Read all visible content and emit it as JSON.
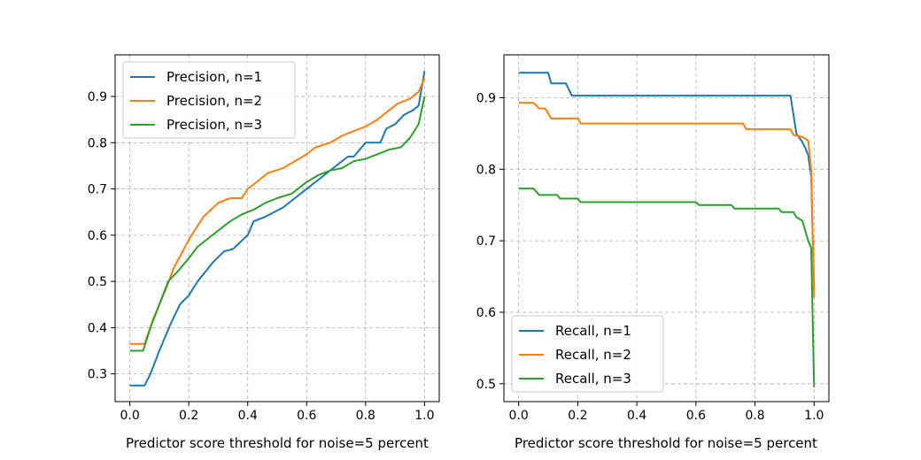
{
  "chart_data": [
    {
      "type": "line",
      "title": "",
      "xlabel": "Predictor score threshold for noise=5 percent",
      "ylabel": "",
      "xlim": [
        -0.05,
        1.05
      ],
      "ylim": [
        0.24,
        0.99
      ],
      "xticks": [
        0.0,
        0.2,
        0.4,
        0.6,
        0.8,
        1.0
      ],
      "yticks": [
        0.3,
        0.4,
        0.5,
        0.6,
        0.7,
        0.8,
        0.9
      ],
      "xtick_labels": [
        "0.0",
        "0.2",
        "0.4",
        "0.6",
        "0.8",
        "1.0"
      ],
      "ytick_labels": [
        "0.3",
        "0.4",
        "0.5",
        "0.6",
        "0.7",
        "0.8",
        "0.9"
      ],
      "grid": true,
      "legend_position": "top-left",
      "series": [
        {
          "name": "Precision, n=1",
          "color": "#1f77b4",
          "x": [
            0.0,
            0.05,
            0.07,
            0.1,
            0.14,
            0.17,
            0.2,
            0.23,
            0.28,
            0.32,
            0.35,
            0.4,
            0.42,
            0.46,
            0.52,
            0.56,
            0.6,
            0.64,
            0.68,
            0.7,
            0.72,
            0.74,
            0.76,
            0.8,
            0.85,
            0.87,
            0.9,
            0.93,
            0.96,
            0.98,
            1.0
          ],
          "y": [
            0.275,
            0.275,
            0.3,
            0.35,
            0.41,
            0.45,
            0.47,
            0.5,
            0.54,
            0.565,
            0.57,
            0.6,
            0.63,
            0.64,
            0.66,
            0.68,
            0.7,
            0.72,
            0.74,
            0.75,
            0.76,
            0.77,
            0.77,
            0.8,
            0.8,
            0.83,
            0.84,
            0.86,
            0.87,
            0.88,
            0.955
          ]
        },
        {
          "name": "Precision, n=2",
          "color": "#ff7f0e",
          "x": [
            0.0,
            0.05,
            0.08,
            0.12,
            0.15,
            0.2,
            0.22,
            0.25,
            0.3,
            0.34,
            0.38,
            0.4,
            0.44,
            0.47,
            0.52,
            0.56,
            0.6,
            0.63,
            0.68,
            0.72,
            0.76,
            0.8,
            0.84,
            0.88,
            0.91,
            0.95,
            0.98,
            1.0
          ],
          "y": [
            0.365,
            0.365,
            0.42,
            0.48,
            0.53,
            0.59,
            0.61,
            0.64,
            0.67,
            0.68,
            0.68,
            0.7,
            0.72,
            0.735,
            0.745,
            0.76,
            0.775,
            0.79,
            0.8,
            0.815,
            0.825,
            0.835,
            0.85,
            0.87,
            0.885,
            0.895,
            0.91,
            0.94
          ]
        },
        {
          "name": "Precision, n=3",
          "color": "#2ca02c",
          "x": [
            0.0,
            0.045,
            0.07,
            0.1,
            0.13,
            0.16,
            0.2,
            0.23,
            0.26,
            0.3,
            0.34,
            0.38,
            0.42,
            0.46,
            0.5,
            0.55,
            0.6,
            0.64,
            0.68,
            0.72,
            0.76,
            0.8,
            0.84,
            0.88,
            0.92,
            0.95,
            0.98,
            1.0
          ],
          "y": [
            0.35,
            0.35,
            0.4,
            0.45,
            0.5,
            0.52,
            0.55,
            0.575,
            0.59,
            0.61,
            0.63,
            0.645,
            0.655,
            0.67,
            0.68,
            0.69,
            0.715,
            0.73,
            0.74,
            0.745,
            0.76,
            0.765,
            0.775,
            0.785,
            0.79,
            0.81,
            0.84,
            0.9
          ]
        }
      ]
    },
    {
      "type": "line",
      "title": "",
      "xlabel": "Predictor score threshold for noise=5 percent",
      "ylabel": "",
      "xlim": [
        -0.05,
        1.05
      ],
      "ylim": [
        0.475,
        0.96
      ],
      "xticks": [
        0.0,
        0.2,
        0.4,
        0.6,
        0.8,
        1.0
      ],
      "yticks": [
        0.5,
        0.6,
        0.7,
        0.8,
        0.9
      ],
      "xtick_labels": [
        "0.0",
        "0.2",
        "0.4",
        "0.6",
        "0.8",
        "1.0"
      ],
      "ytick_labels": [
        "0.5",
        "0.6",
        "0.7",
        "0.8",
        "0.9"
      ],
      "grid": true,
      "legend_position": "bottom-left",
      "series": [
        {
          "name": "Recall, n=1",
          "color": "#1f77b4",
          "x": [
            0.0,
            0.1,
            0.11,
            0.16,
            0.18,
            0.92,
            0.94,
            0.96,
            0.97,
            0.98,
            0.99,
            1.0
          ],
          "y": [
            0.935,
            0.935,
            0.92,
            0.92,
            0.903,
            0.903,
            0.85,
            0.838,
            0.83,
            0.82,
            0.79,
            0.63
          ]
        },
        {
          "name": "Recall, n=2",
          "color": "#ff7f0e",
          "x": [
            0.0,
            0.05,
            0.07,
            0.09,
            0.11,
            0.2,
            0.21,
            0.76,
            0.77,
            0.92,
            0.93,
            0.96,
            0.98,
            0.99,
            1.0
          ],
          "y": [
            0.893,
            0.893,
            0.885,
            0.885,
            0.871,
            0.871,
            0.864,
            0.864,
            0.856,
            0.856,
            0.848,
            0.845,
            0.84,
            0.8,
            0.62
          ]
        },
        {
          "name": "Recall, n=3",
          "color": "#2ca02c",
          "x": [
            0.0,
            0.05,
            0.07,
            0.13,
            0.14,
            0.2,
            0.21,
            0.6,
            0.61,
            0.72,
            0.73,
            0.88,
            0.89,
            0.93,
            0.94,
            0.96,
            0.98,
            0.99,
            1.0
          ],
          "y": [
            0.773,
            0.773,
            0.764,
            0.764,
            0.759,
            0.759,
            0.754,
            0.754,
            0.75,
            0.75,
            0.745,
            0.745,
            0.74,
            0.74,
            0.733,
            0.728,
            0.7,
            0.69,
            0.495
          ]
        }
      ]
    }
  ]
}
